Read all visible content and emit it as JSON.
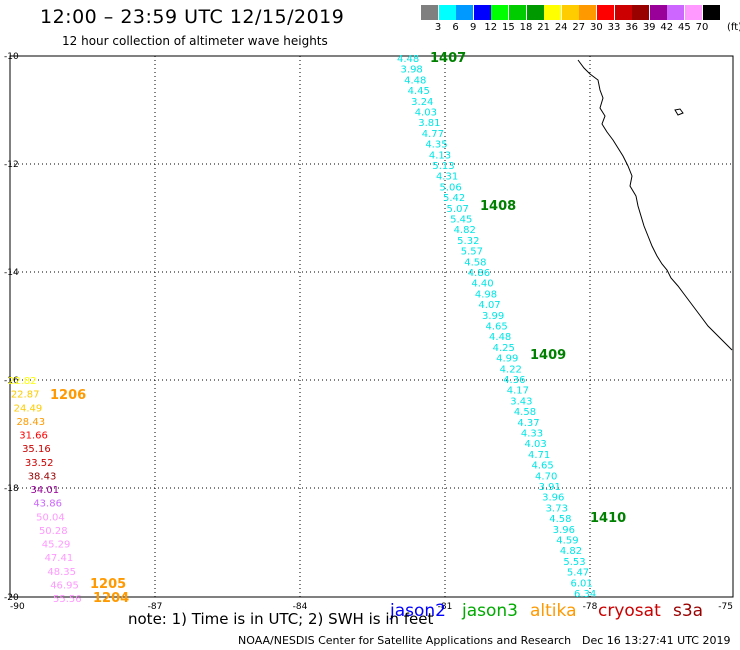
{
  "header": {
    "title": "12:00 – 23:59 UTC 12/15/2019",
    "subtitle": "12 hour collection of altimeter wave heights"
  },
  "colorbar": {
    "unit": "(ft)",
    "swatches": [
      "#7f7f7f",
      "#00ffff",
      "#0099ff",
      "#0000ff",
      "#00ff00",
      "#00cc00",
      "#009900",
      "#ffff00",
      "#ffcc00",
      "#ff9900",
      "#ff0000",
      "#cc0000",
      "#990000",
      "#990099",
      "#cc66ff",
      "#ff99ff",
      "#000000"
    ],
    "ticks": [
      "3",
      "6",
      "9",
      "12",
      "15",
      "18",
      "21",
      "24",
      "27",
      "30",
      "33",
      "36",
      "39",
      "42",
      "45",
      "70"
    ]
  },
  "map": {
    "lat_labels": [
      "-10",
      "-12",
      "-14",
      "-16",
      "-18",
      "-20"
    ],
    "lon_labels": [
      "-90",
      "-87",
      "-84",
      "-81",
      "-78",
      "-75"
    ]
  },
  "tracks": [
    {
      "name": "east",
      "color": "#00e6e6",
      "values": [
        "4.48",
        "3.98",
        "4.48",
        "4.45",
        "3.24",
        "4.03",
        "3.81",
        "4.77",
        "4.35",
        "4.13",
        "5.13",
        "4.31",
        "5.06",
        "5.42",
        "5.07",
        "5.45",
        "4.82",
        "5.32",
        "5.57",
        "4.58",
        "4.86",
        "4.40",
        "4.98",
        "4.07",
        "3.99",
        "4.65",
        "4.48",
        "4.25",
        "4.99",
        "4.22",
        "4.36",
        "4.17",
        "3.43",
        "4.58",
        "4.37",
        "4.33",
        "4.03",
        "4.71",
        "4.65",
        "4.70",
        "3.91",
        "3.96",
        "3.73",
        "4.58",
        "3.96",
        "4.59",
        "4.82",
        "5.53",
        "5.47",
        "6.01",
        "6.34"
      ]
    },
    {
      "name": "west",
      "values": [
        "22.82",
        "22.87",
        "24.49",
        "28.43",
        "31.66",
        "35.16",
        "33.52",
        "38.43",
        "34.01",
        "43.86",
        "50.04",
        "50.28",
        "45.29",
        "47.41",
        "48.35",
        "46.95",
        "55.56"
      ],
      "colors": [
        "#ffff00",
        "#ffcc00",
        "#ffcc00",
        "#ff9900",
        "#ff0000",
        "#cc0000",
        "#cc0000",
        "#990000",
        "#990099",
        "#cc66ff",
        "#ff99ff",
        "#ff99ff",
        "#ff99ff",
        "#ff99ff",
        "#ff99ff",
        "#ff99ff",
        "#ff99ff"
      ]
    }
  ],
  "pass_labels": [
    {
      "text": "1407",
      "color": "#008000"
    },
    {
      "text": "1408",
      "color": "#008000"
    },
    {
      "text": "1409",
      "color": "#008000"
    },
    {
      "text": "1410",
      "color": "#008000"
    },
    {
      "text": "1206",
      "color": "#ff9900"
    },
    {
      "text": "1205",
      "color": "#ff9900"
    },
    {
      "text": "1204",
      "color": "#ff9900"
    }
  ],
  "legend": {
    "jason2": {
      "text": "jason2",
      "color": "#0000ff"
    },
    "jason3": {
      "text": "jason3",
      "color": "#00aa00"
    },
    "altika": {
      "text": "altika",
      "color": "#ff9900"
    },
    "cryosat": {
      "text": "cryosat",
      "color": "#cc0000"
    },
    "s3a": {
      "text": "s3a",
      "color": "#990000"
    }
  },
  "footer": {
    "note": "note:  1) Time is in UTC;  2) SWH is in feet",
    "credit": "NOAA/NESDIS Center for Satellite Applications and Research",
    "stamp": "Dec 16 13:27:41 UTC 2019"
  }
}
